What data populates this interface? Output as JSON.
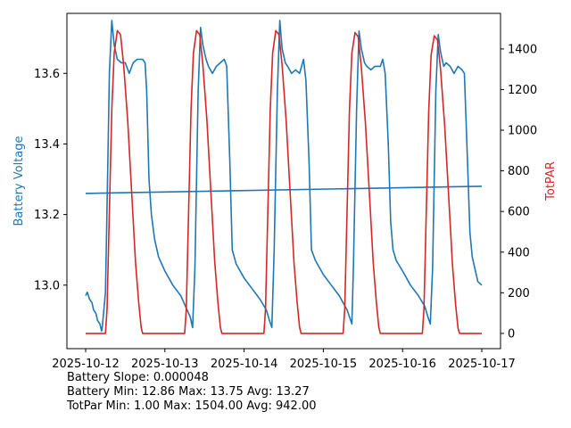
{
  "chart_data": {
    "type": "line",
    "x_ticks": [
      "2025-10-12",
      "2025-10-13",
      "2025-10-14",
      "2025-10-15",
      "2025-10-16",
      "2025-10-17"
    ],
    "y_left": {
      "label": "Battery Voltage",
      "color": "#1f77b4",
      "ylim": [
        12.82,
        13.77
      ],
      "ticks": [
        "13.0",
        "13.2",
        "13.4",
        "13.6"
      ]
    },
    "y_right": {
      "label": "TotPAR",
      "color": "#d62728",
      "ylim": [
        -75,
        1575
      ],
      "ticks": [
        "0",
        "200",
        "400",
        "600",
        "800",
        "1000",
        "1200",
        "1400"
      ]
    },
    "series": [
      {
        "axis": "left",
        "color": "#1f77b4",
        "points": [
          [
            0.0,
            12.97
          ],
          [
            0.02,
            12.98
          ],
          [
            0.05,
            12.96
          ],
          [
            0.08,
            12.95
          ],
          [
            0.1,
            12.93
          ],
          [
            0.13,
            12.92
          ],
          [
            0.15,
            12.9
          ],
          [
            0.18,
            12.89
          ],
          [
            0.2,
            12.87
          ],
          [
            0.21,
            12.88
          ],
          [
            0.25,
            12.98
          ],
          [
            0.28,
            13.35
          ],
          [
            0.3,
            13.6
          ],
          [
            0.33,
            13.75
          ],
          [
            0.36,
            13.68
          ],
          [
            0.4,
            13.64
          ],
          [
            0.45,
            13.63
          ],
          [
            0.5,
            13.63
          ],
          [
            0.55,
            13.6
          ],
          [
            0.6,
            13.63
          ],
          [
            0.65,
            13.64
          ],
          [
            0.72,
            13.64
          ],
          [
            0.75,
            13.63
          ],
          [
            0.77,
            13.55
          ],
          [
            0.8,
            13.3
          ],
          [
            0.83,
            13.2
          ],
          [
            0.87,
            13.13
          ],
          [
            0.92,
            13.08
          ],
          [
            1.0,
            13.04
          ],
          [
            1.1,
            13.0
          ],
          [
            1.2,
            12.97
          ],
          [
            1.28,
            12.93
          ],
          [
            1.32,
            12.91
          ],
          [
            1.35,
            12.88
          ],
          [
            1.38,
            13.05
          ],
          [
            1.42,
            13.55
          ],
          [
            1.45,
            13.73
          ],
          [
            1.48,
            13.68
          ],
          [
            1.52,
            13.64
          ],
          [
            1.55,
            13.62
          ],
          [
            1.6,
            13.6
          ],
          [
            1.65,
            13.62
          ],
          [
            1.7,
            13.63
          ],
          [
            1.75,
            13.64
          ],
          [
            1.78,
            13.62
          ],
          [
            1.82,
            13.35
          ],
          [
            1.85,
            13.1
          ],
          [
            1.9,
            13.06
          ],
          [
            2.0,
            13.02
          ],
          [
            2.1,
            12.99
          ],
          [
            2.2,
            12.96
          ],
          [
            2.28,
            12.93
          ],
          [
            2.32,
            12.9
          ],
          [
            2.35,
            12.88
          ],
          [
            2.38,
            13.1
          ],
          [
            2.42,
            13.55
          ],
          [
            2.45,
            13.75
          ],
          [
            2.48,
            13.67
          ],
          [
            2.52,
            13.63
          ],
          [
            2.55,
            13.62
          ],
          [
            2.6,
            13.6
          ],
          [
            2.65,
            13.61
          ],
          [
            2.7,
            13.6
          ],
          [
            2.75,
            13.64
          ],
          [
            2.78,
            13.58
          ],
          [
            2.82,
            13.35
          ],
          [
            2.85,
            13.1
          ],
          [
            2.9,
            13.07
          ],
          [
            3.0,
            13.03
          ],
          [
            3.1,
            13.0
          ],
          [
            3.2,
            12.97
          ],
          [
            3.3,
            12.93
          ],
          [
            3.36,
            12.89
          ],
          [
            3.38,
            13.05
          ],
          [
            3.42,
            13.5
          ],
          [
            3.45,
            13.72
          ],
          [
            3.48,
            13.67
          ],
          [
            3.52,
            13.63
          ],
          [
            3.55,
            13.62
          ],
          [
            3.6,
            13.61
          ],
          [
            3.65,
            13.62
          ],
          [
            3.72,
            13.62
          ],
          [
            3.75,
            13.64
          ],
          [
            3.78,
            13.6
          ],
          [
            3.82,
            13.4
          ],
          [
            3.85,
            13.18
          ],
          [
            3.88,
            13.1
          ],
          [
            3.92,
            13.07
          ],
          [
            4.0,
            13.04
          ],
          [
            4.1,
            13.0
          ],
          [
            4.2,
            12.97
          ],
          [
            4.28,
            12.94
          ],
          [
            4.32,
            12.91
          ],
          [
            4.35,
            12.89
          ],
          [
            4.38,
            13.05
          ],
          [
            4.42,
            13.55
          ],
          [
            4.45,
            13.71
          ],
          [
            4.48,
            13.66
          ],
          [
            4.52,
            13.62
          ],
          [
            4.55,
            13.63
          ],
          [
            4.6,
            13.62
          ],
          [
            4.65,
            13.6
          ],
          [
            4.7,
            13.62
          ],
          [
            4.75,
            13.61
          ],
          [
            4.78,
            13.6
          ],
          [
            4.82,
            13.35
          ],
          [
            4.85,
            13.15
          ],
          [
            4.88,
            13.08
          ],
          [
            4.92,
            13.04
          ],
          [
            4.95,
            13.01
          ],
          [
            5.0,
            13.0
          ]
        ]
      },
      {
        "axis": "left",
        "color": "#1f77b4",
        "points": [
          [
            0.0,
            13.26
          ],
          [
            5.0,
            13.28
          ]
        ]
      },
      {
        "axis": "right",
        "color": "#d62728",
        "points": [
          [
            0.0,
            0
          ],
          [
            0.25,
            0
          ],
          [
            0.27,
            120
          ],
          [
            0.3,
            600
          ],
          [
            0.33,
            1100
          ],
          [
            0.36,
            1380
          ],
          [
            0.4,
            1490
          ],
          [
            0.44,
            1470
          ],
          [
            0.48,
            1320
          ],
          [
            0.53,
            1050
          ],
          [
            0.58,
            700
          ],
          [
            0.63,
            350
          ],
          [
            0.67,
            150
          ],
          [
            0.7,
            30
          ],
          [
            0.72,
            0
          ],
          [
            1.25,
            0
          ],
          [
            1.27,
            120
          ],
          [
            1.3,
            600
          ],
          [
            1.33,
            1100
          ],
          [
            1.36,
            1380
          ],
          [
            1.4,
            1490
          ],
          [
            1.44,
            1470
          ],
          [
            1.48,
            1320
          ],
          [
            1.53,
            1050
          ],
          [
            1.58,
            700
          ],
          [
            1.63,
            350
          ],
          [
            1.67,
            150
          ],
          [
            1.7,
            30
          ],
          [
            1.72,
            0
          ],
          [
            2.25,
            0
          ],
          [
            2.27,
            120
          ],
          [
            2.3,
            600
          ],
          [
            2.33,
            1100
          ],
          [
            2.36,
            1380
          ],
          [
            2.4,
            1490
          ],
          [
            2.44,
            1470
          ],
          [
            2.48,
            1320
          ],
          [
            2.53,
            1050
          ],
          [
            2.58,
            700
          ],
          [
            2.63,
            350
          ],
          [
            2.67,
            150
          ],
          [
            2.7,
            30
          ],
          [
            2.72,
            0
          ],
          [
            3.25,
            0
          ],
          [
            3.27,
            120
          ],
          [
            3.3,
            600
          ],
          [
            3.33,
            1100
          ],
          [
            3.36,
            1380
          ],
          [
            3.4,
            1480
          ],
          [
            3.44,
            1460
          ],
          [
            3.48,
            1310
          ],
          [
            3.53,
            1040
          ],
          [
            3.58,
            700
          ],
          [
            3.63,
            350
          ],
          [
            3.67,
            150
          ],
          [
            3.7,
            30
          ],
          [
            3.72,
            0
          ],
          [
            4.25,
            0
          ],
          [
            4.27,
            120
          ],
          [
            4.3,
            600
          ],
          [
            4.33,
            1090
          ],
          [
            4.36,
            1370
          ],
          [
            4.4,
            1465
          ],
          [
            4.44,
            1445
          ],
          [
            4.48,
            1300
          ],
          [
            4.53,
            1030
          ],
          [
            4.58,
            690
          ],
          [
            4.63,
            340
          ],
          [
            4.67,
            140
          ],
          [
            4.7,
            25
          ],
          [
            4.72,
            0
          ],
          [
            5.0,
            0
          ]
        ]
      }
    ]
  },
  "stats": {
    "slope": "Battery Slope: 0.000048",
    "battery": "Battery Min: 12.86 Max: 13.75 Avg: 13.27",
    "totpar": "TotPar Min: 1.00 Max: 1504.00 Avg: 942.00"
  }
}
